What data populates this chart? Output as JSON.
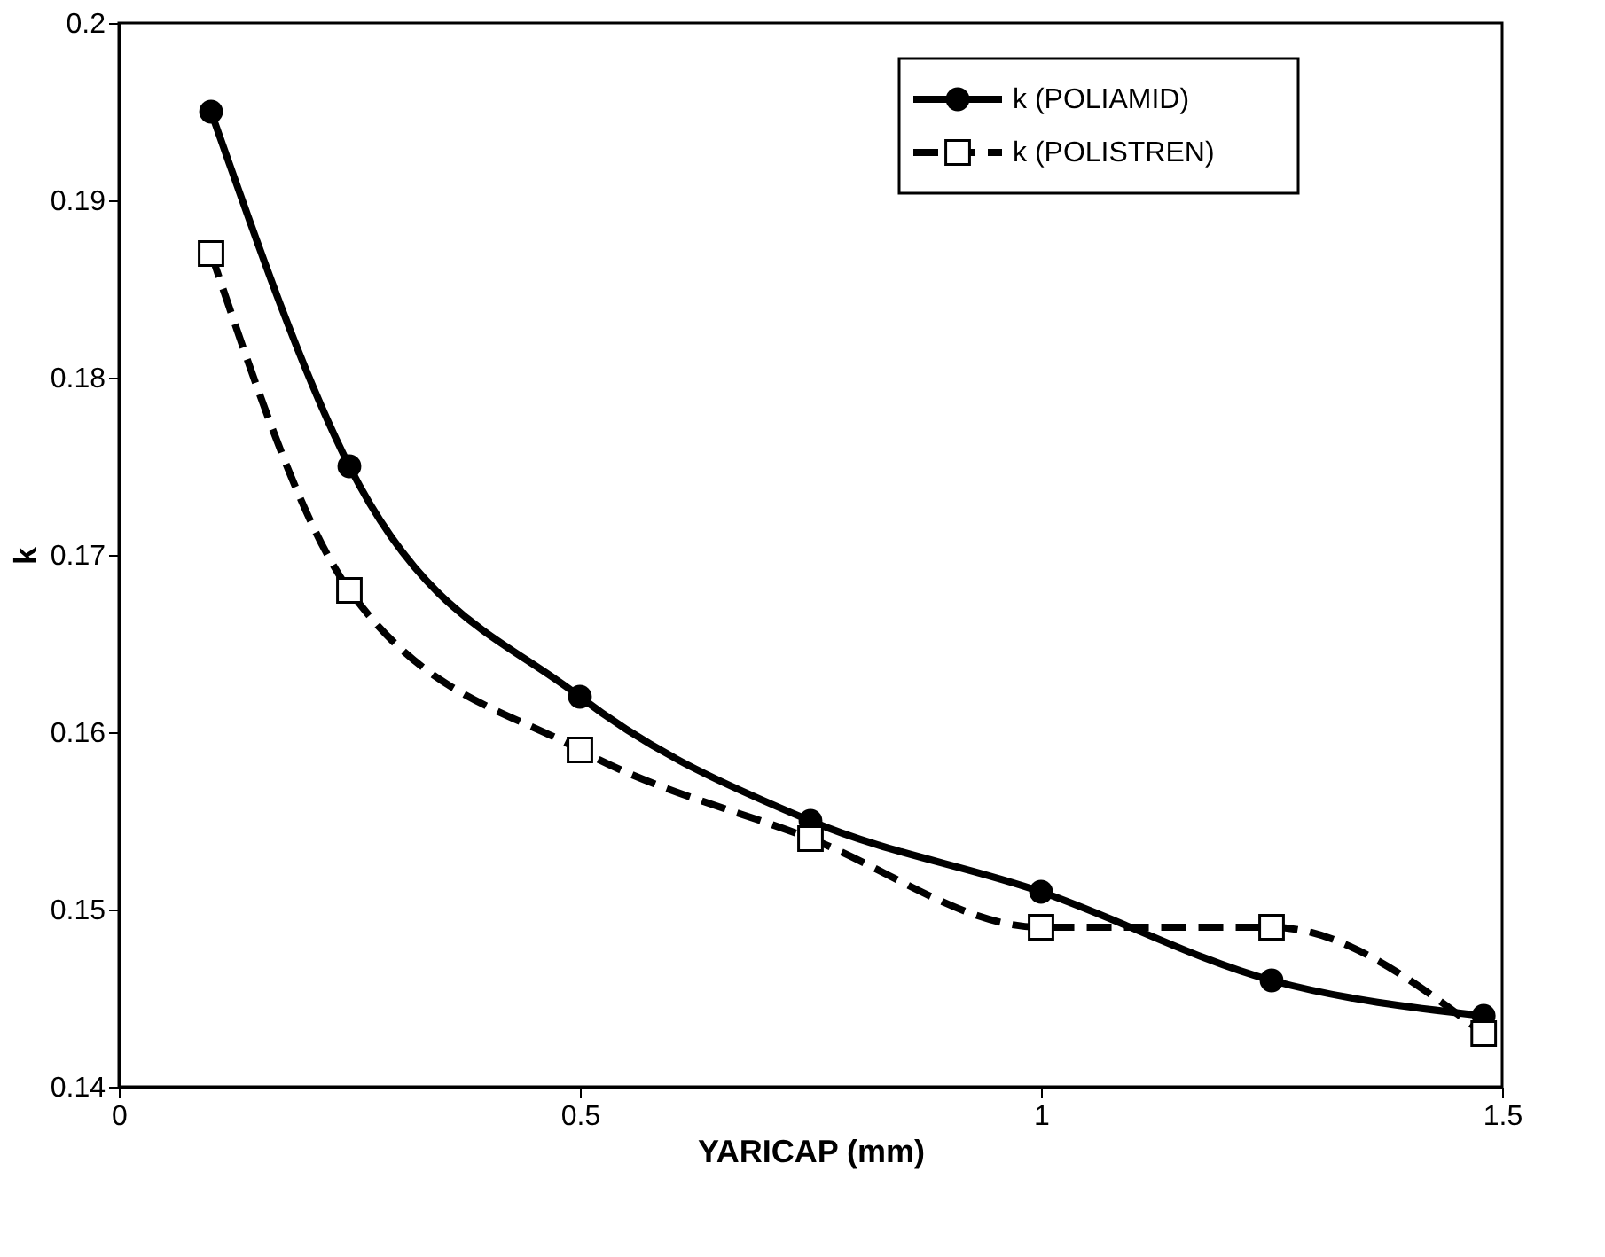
{
  "chart_data": {
    "type": "line",
    "xlabel": "YARICAP (mm)",
    "ylabel": "k",
    "xlim": [
      0,
      1.5
    ],
    "xticks": [
      0,
      0.5,
      1,
      1.5
    ],
    "ylim": [
      0.14,
      0.2
    ],
    "yticks": [
      0.14,
      0.15,
      0.16,
      0.17,
      0.18,
      0.19,
      0.2
    ],
    "grid": false,
    "legend": "top right",
    "series": [
      {
        "name": "k (POLIAMID)",
        "color": "#000000",
        "marker": "circle",
        "line_style": "solid",
        "x": [
          0.1,
          0.25,
          0.5,
          0.75,
          1.0,
          1.25,
          1.48
        ],
        "values": [
          0.195,
          0.175,
          0.162,
          0.155,
          0.151,
          0.146,
          0.144
        ]
      },
      {
        "name": "k (POLISTREN)",
        "color": "#000000",
        "marker": "square",
        "line_style": "dashed",
        "x": [
          0.1,
          0.25,
          0.5,
          0.75,
          1.0,
          1.25,
          1.48
        ],
        "values": [
          0.187,
          0.168,
          0.159,
          0.154,
          0.149,
          0.149,
          0.143
        ]
      }
    ]
  }
}
